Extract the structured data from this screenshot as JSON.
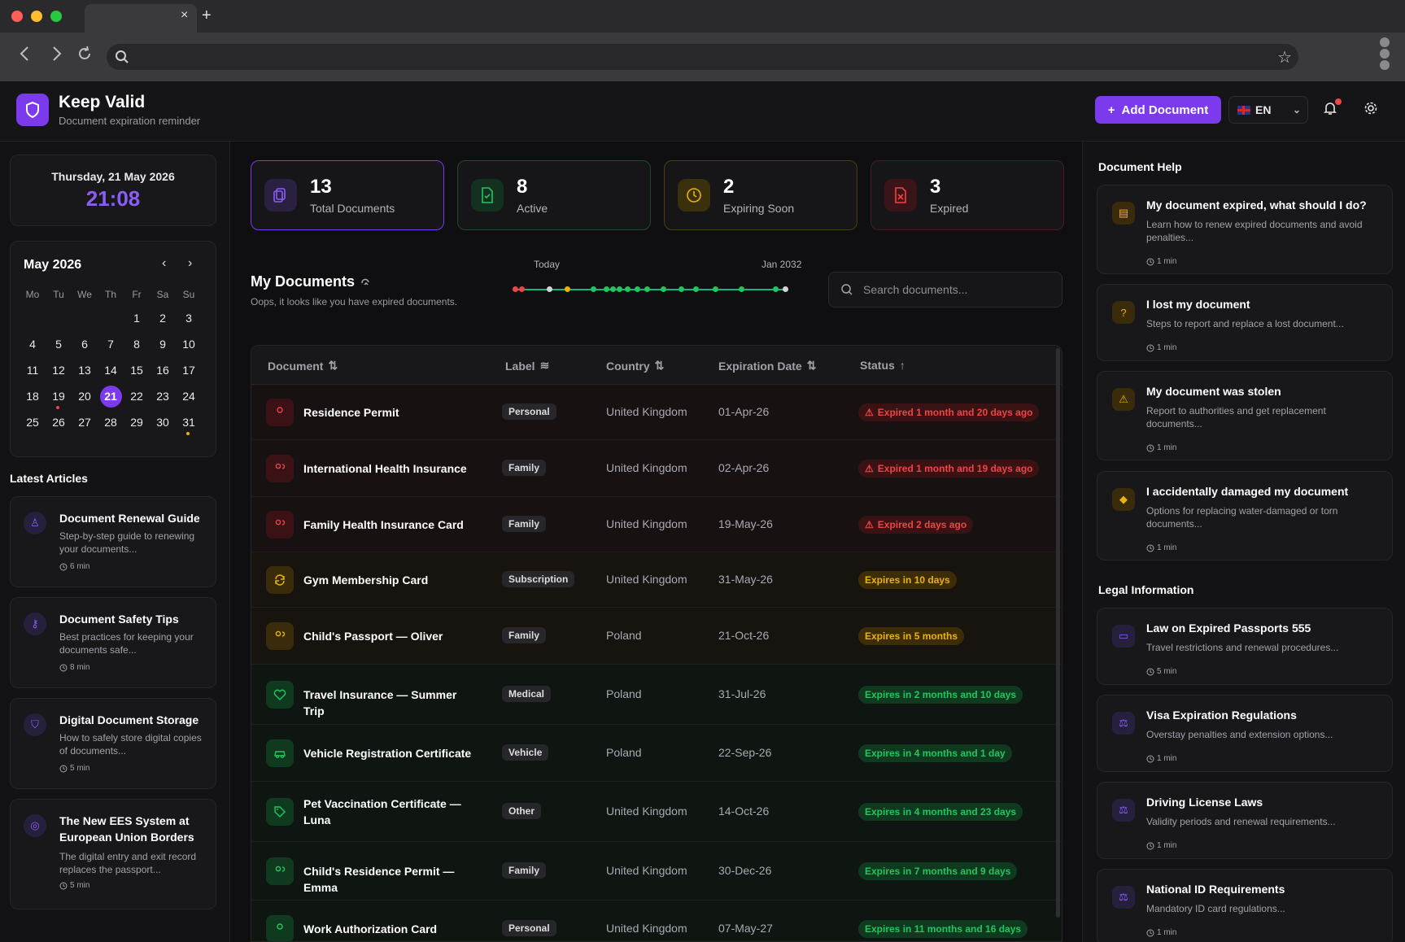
{
  "browser": {
    "tab_close": "×",
    "tab_new": "+",
    "back_icon": "arrow-left-icon",
    "forward_icon": "arrow-right-icon",
    "reload_icon": "reload-icon"
  },
  "app": {
    "name": "Keep Valid",
    "subtitle": "Document expiration reminder",
    "add_button": "Add Document",
    "language": "EN",
    "accent": "#7c3aed"
  },
  "datetime": {
    "date": "Thursday, 21 May 2026",
    "time": "21:08"
  },
  "calendar": {
    "month": "May 2026",
    "weekdays": [
      "Mo",
      "Tu",
      "We",
      "Th",
      "Fr",
      "Sa",
      "Su"
    ],
    "leading_blanks": 4,
    "days": [
      "1",
      "2",
      "3",
      "4",
      "5",
      "6",
      "7",
      "8",
      "9",
      "10",
      "11",
      "12",
      "13",
      "14",
      "15",
      "16",
      "17",
      "18",
      "19",
      "20",
      "21",
      "22",
      "23",
      "24",
      "25",
      "26",
      "27",
      "28",
      "29",
      "30",
      "31"
    ],
    "today": "21",
    "marked_red": "19",
    "marked_amber": "31"
  },
  "articles": {
    "title": "Latest Articles",
    "items": [
      {
        "title": "Document Renewal Guide",
        "desc": "Step-by-step guide to renewing your documents...",
        "time": "6 min",
        "icon": "stamp-icon"
      },
      {
        "title": "Document Safety Tips",
        "desc": "Best practices for keeping your documents safe...",
        "time": "8 min",
        "icon": "key-icon"
      },
      {
        "title": "Digital Document Storage",
        "desc": "How to safely store digital copies of documents...",
        "time": "5 min",
        "icon": "shield-icon"
      },
      {
        "title": "The New EES System at European Union Borders",
        "desc": "The digital entry and exit record replaces the passport...",
        "time": "5 min",
        "icon": "fingerprint-icon"
      }
    ]
  },
  "stats": [
    {
      "value": "13",
      "label": "Total Documents",
      "icon": "copy-icon",
      "color": "#8b5cf6"
    },
    {
      "value": "8",
      "label": "Active",
      "icon": "file-check-icon",
      "color": "#22c55e"
    },
    {
      "value": "2",
      "label": "Expiring Soon",
      "icon": "clock-icon",
      "color": "#eab308"
    },
    {
      "value": "3",
      "label": "Expired",
      "icon": "file-x-icon",
      "color": "#ef4444"
    }
  ],
  "documents": {
    "title": "My Documents",
    "subtitle": "Oops, it looks like you have expired documents.",
    "timeline_start": "Today",
    "timeline_end": "Jan 2032",
    "search_placeholder": "Search documents...",
    "columns": [
      "Document",
      "Label",
      "Country",
      "Expiration Date",
      "Status"
    ],
    "rows": [
      {
        "name": "Residence Permit",
        "label": "Personal",
        "country": "United Kingdom",
        "date": "01-Apr-26",
        "status": "Expired 1 month and 20 days ago",
        "state": "red",
        "icon": "user-icon"
      },
      {
        "name": "International Health Insurance",
        "label": "Family",
        "country": "United Kingdom",
        "date": "02-Apr-26",
        "status": "Expired 1 month and 19 days ago",
        "state": "red",
        "icon": "users-icon"
      },
      {
        "name": "Family Health Insurance Card",
        "label": "Family",
        "country": "United Kingdom",
        "date": "19-May-26",
        "status": "Expired 2 days ago",
        "state": "red",
        "icon": "users-icon"
      },
      {
        "name": "Gym Membership Card",
        "label": "Subscription",
        "country": "United Kingdom",
        "date": "31-May-26",
        "status": "Expires in 10 days",
        "state": "amber",
        "icon": "refresh-icon"
      },
      {
        "name": "Child's Passport — Oliver",
        "label": "Family",
        "country": "Poland",
        "date": "21-Oct-26",
        "status": "Expires in 5 months",
        "state": "amber",
        "icon": "users-icon"
      },
      {
        "name": "Travel Insurance — Summer Trip",
        "label": "Medical",
        "country": "Poland",
        "date": "31-Jul-26",
        "status": "Expires in 2 months and 10 days",
        "state": "green",
        "icon": "heart-icon"
      },
      {
        "name": "Vehicle Registration Certificate",
        "label": "Vehicle",
        "country": "Poland",
        "date": "22-Sep-26",
        "status": "Expires in 4 months and 1 day",
        "state": "green",
        "icon": "car-icon"
      },
      {
        "name": "Pet Vaccination Certificate — Luna",
        "label": "Other",
        "country": "United Kingdom",
        "date": "14-Oct-26",
        "status": "Expires in 4 months and 23 days",
        "state": "green",
        "icon": "tag-icon"
      },
      {
        "name": "Child's Residence Permit — Emma",
        "label": "Family",
        "country": "United Kingdom",
        "date": "30-Dec-26",
        "status": "Expires in 7 months and 9 days",
        "state": "green",
        "icon": "users-icon"
      },
      {
        "name": "Work Authorization Card",
        "label": "Personal",
        "country": "United Kingdom",
        "date": "07-May-27",
        "status": "Expires in 11 months and 16 days",
        "state": "green",
        "icon": "user-icon"
      }
    ]
  },
  "help": {
    "title": "Document Help",
    "items": [
      {
        "title": "My document expired, what should I do?",
        "desc": "Learn how to renew expired documents and avoid penalties...",
        "time": "1 min",
        "icon": "document-icon"
      },
      {
        "title": "I lost my document",
        "desc": "Steps to report and replace a lost document...",
        "time": "1 min",
        "icon": "question-icon"
      },
      {
        "title": "My document was stolen",
        "desc": "Report to authorities and get replacement documents...",
        "time": "1 min",
        "icon": "warning-icon"
      },
      {
        "title": "I accidentally damaged my document",
        "desc": "Options for replacing water-damaged or torn documents...",
        "time": "1 min",
        "icon": "droplet-icon"
      }
    ]
  },
  "legal": {
    "title": "Legal Information",
    "items": [
      {
        "title": "Law on Expired Passports 555",
        "desc": "Travel restrictions and renewal procedures...",
        "time": "5 min",
        "icon": "passport-icon"
      },
      {
        "title": "Visa Expiration Regulations",
        "desc": "Overstay penalties and extension options...",
        "time": "1 min",
        "icon": "scale-icon"
      },
      {
        "title": "Driving License Laws",
        "desc": "Validity periods and renewal requirements...",
        "time": "1 min",
        "icon": "scale-icon"
      },
      {
        "title": "National ID Requirements",
        "desc": "Mandatory ID card regulations...",
        "time": "1 min",
        "icon": "scale-icon"
      }
    ]
  }
}
